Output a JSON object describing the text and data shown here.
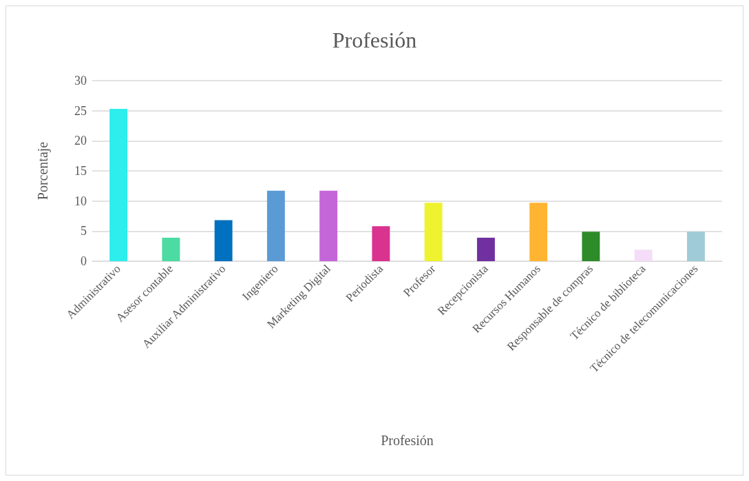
{
  "chart_data": {
    "type": "bar",
    "title": "Profesión",
    "xlabel": "Profesión",
    "ylabel": "Porcentaje",
    "categories": [
      "Administrativo",
      "Asesor contable",
      "Auxiliar Administrativo",
      "Ingeniero",
      "Marketing Digital",
      "Periodista",
      "Profesor",
      "Recepcionista",
      "Recursos Humanos",
      "Responsable de compras",
      "Técnico de biblioteca",
      "Técnico de telecomunicaciones"
    ],
    "values": [
      25.3,
      3.9,
      6.8,
      11.7,
      11.7,
      5.8,
      9.7,
      3.9,
      9.7,
      4.9,
      1.9,
      4.9
    ],
    "colors": [
      "#2deded",
      "#4bdba3",
      "#0070c0",
      "#5b9bd5",
      "#c566d8",
      "#d9338f",
      "#eef22f",
      "#7030a0",
      "#ffb432",
      "#2e8b2a",
      "#f5dcf8",
      "#9ecbd6"
    ],
    "ylim": [
      0,
      30
    ],
    "yticks": [
      0,
      5,
      10,
      15,
      20,
      25,
      30
    ],
    "grid": "y"
  }
}
